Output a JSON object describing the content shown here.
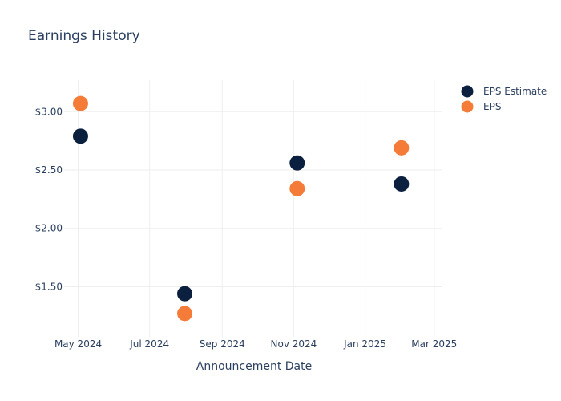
{
  "chart_data": {
    "type": "scatter",
    "title": "Earnings History",
    "xlabel": "Announcement Date",
    "ylabel": "",
    "x_ticks": [
      "May 2024",
      "Jul 2024",
      "Sep 2024",
      "Nov 2024",
      "Jan 2025",
      "Mar 2025"
    ],
    "y_ticks": [
      "$1.50",
      "$2.00",
      "$2.50",
      "$3.00"
    ],
    "xlim": [
      "2024-04-19",
      "2025-03-08"
    ],
    "ylim": [
      1.07,
      3.27
    ],
    "grid": true,
    "legend_position": "top-right",
    "series": [
      {
        "name": "EPS Estimate",
        "color": "#0b1f3f",
        "points": [
          {
            "x": "2024-05-03",
            "y": 2.79
          },
          {
            "x": "2024-07-31",
            "y": 1.44
          },
          {
            "x": "2024-11-04",
            "y": 2.56
          },
          {
            "x": "2025-02-01",
            "y": 2.38
          }
        ]
      },
      {
        "name": "EPS",
        "color": "#f47c38",
        "points": [
          {
            "x": "2024-05-03",
            "y": 3.07
          },
          {
            "x": "2024-07-31",
            "y": 1.27
          },
          {
            "x": "2024-11-04",
            "y": 2.34
          },
          {
            "x": "2025-02-01",
            "y": 2.69
          }
        ]
      }
    ]
  }
}
